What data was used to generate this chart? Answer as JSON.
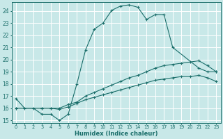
{
  "xlabel": "Humidex (Indice chaleur)",
  "bg_color": "#c8e8e8",
  "grid_color": "#ffffff",
  "line_color": "#1a6e6a",
  "xlim": [
    -0.5,
    23.5
  ],
  "ylim": [
    14.8,
    24.7
  ],
  "yticks": [
    15,
    16,
    17,
    18,
    19,
    20,
    21,
    22,
    23,
    24
  ],
  "xticks": [
    0,
    1,
    2,
    3,
    4,
    5,
    6,
    7,
    8,
    9,
    10,
    11,
    12,
    13,
    14,
    15,
    16,
    17,
    18,
    19,
    20,
    21,
    22,
    23
  ],
  "curve1_x": [
    0,
    1,
    2,
    3,
    4,
    5,
    6,
    7,
    8,
    9,
    10,
    11,
    12,
    13,
    14,
    15,
    16,
    17,
    18,
    21,
    22,
    23
  ],
  "curve1_y": [
    16.8,
    16.0,
    16.0,
    15.5,
    15.5,
    15.0,
    15.5,
    18.0,
    20.8,
    22.5,
    23.0,
    24.05,
    24.4,
    24.5,
    24.3,
    23.3,
    23.7,
    23.7,
    21.0,
    19.3,
    19.0,
    19.0
  ],
  "curve2_x": [
    0,
    3,
    4,
    5,
    6,
    7,
    8,
    9,
    10,
    11,
    12,
    13,
    14,
    15,
    16,
    17,
    18,
    19,
    20,
    21,
    22,
    23
  ],
  "curve2_y": [
    16.0,
    16.0,
    16.0,
    16.0,
    16.3,
    16.5,
    17.0,
    17.3,
    17.6,
    17.9,
    18.2,
    18.5,
    18.7,
    19.0,
    19.3,
    19.5,
    19.6,
    19.7,
    19.8,
    19.9,
    19.5,
    19.0
  ],
  "curve3_x": [
    0,
    3,
    4,
    5,
    6,
    7,
    8,
    9,
    10,
    11,
    12,
    13,
    14,
    15,
    16,
    17,
    18,
    19,
    20,
    21,
    22,
    23
  ],
  "curve3_y": [
    16.0,
    16.0,
    16.0,
    15.9,
    16.1,
    16.4,
    16.7,
    16.9,
    17.1,
    17.3,
    17.5,
    17.7,
    17.9,
    18.1,
    18.3,
    18.4,
    18.5,
    18.6,
    18.6,
    18.7,
    18.5,
    18.2
  ]
}
